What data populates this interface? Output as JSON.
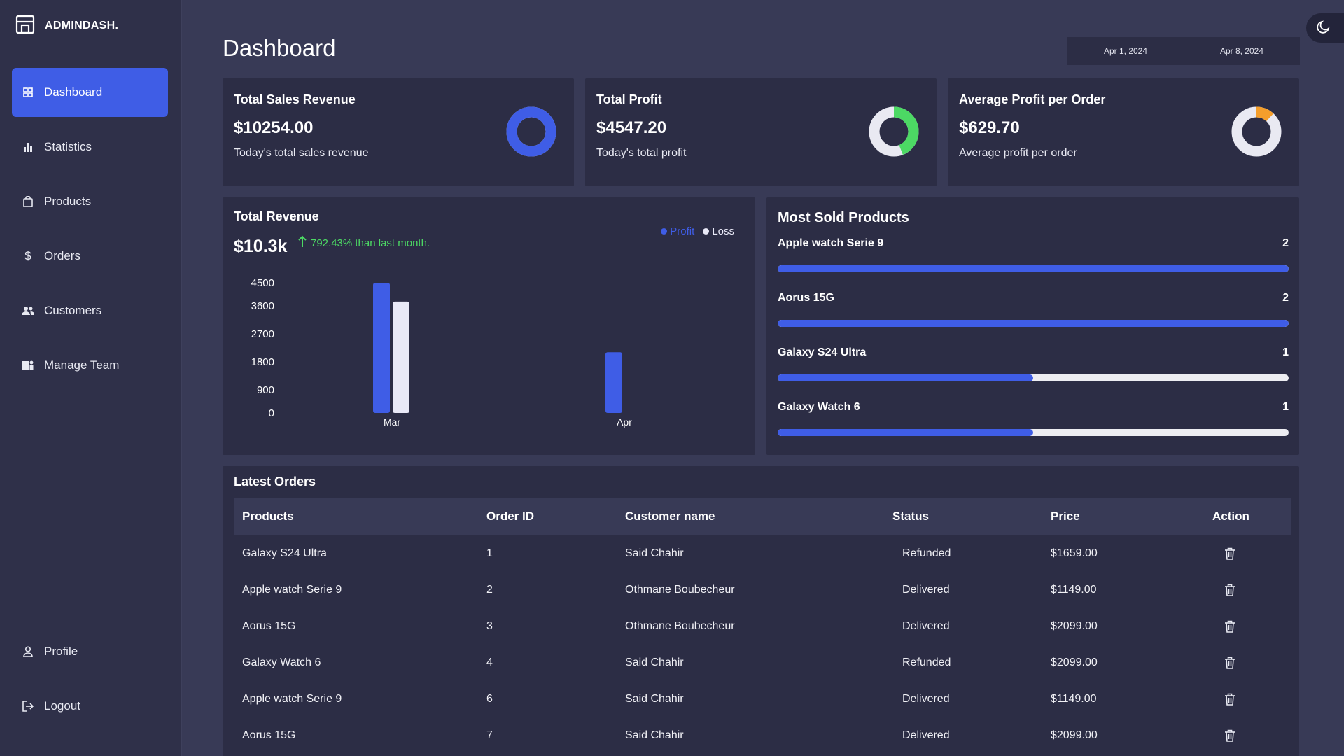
{
  "brand": {
    "title": "ADMINDASH.",
    "icon": "store-icon"
  },
  "sidebar": {
    "items": [
      {
        "label": "Dashboard",
        "icon": "grid-icon",
        "active": true
      },
      {
        "label": "Statistics",
        "icon": "bar-chart-icon"
      },
      {
        "label": "Products",
        "icon": "bag-icon"
      },
      {
        "label": "Orders",
        "icon": "dollar-icon"
      },
      {
        "label": "Customers",
        "icon": "users-icon"
      },
      {
        "label": "Manage Team",
        "icon": "team-icon"
      }
    ],
    "bottom": [
      {
        "label": "Profile",
        "icon": "user-icon"
      },
      {
        "label": "Logout",
        "icon": "logout-icon"
      }
    ]
  },
  "header": {
    "title": "Dashboard",
    "date_from": "Apr 1, 2024",
    "date_to": "Apr 8, 2024",
    "theme_icon": "moon-icon"
  },
  "stats": [
    {
      "title": "Total Sales Revenue",
      "value": "$10254.00",
      "sub": "Today's total sales revenue",
      "fill": 1.0,
      "color": "#3f5de6"
    },
    {
      "title": "Total Profit",
      "value": "$4547.20",
      "sub": "Today's total profit",
      "fill": 0.44,
      "color": "#4cd964"
    },
    {
      "title": "Average Profit per Order",
      "value": "$629.70",
      "sub": "Average profit per order",
      "fill": 0.12,
      "color": "#f59e2b"
    }
  ],
  "revenue": {
    "title": "Total Revenue",
    "value": "$10.3k",
    "change": "792.43% than last month.",
    "legend_profit": "Profit",
    "legend_loss": "Loss"
  },
  "chart_data": {
    "type": "bar",
    "categories": [
      "Mar",
      "Apr"
    ],
    "series": [
      {
        "name": "Profit",
        "values": [
          4500,
          2100
        ],
        "color": "#3f5de6"
      },
      {
        "name": "Loss",
        "values": [
          3850,
          0
        ],
        "color": "#e9e9f7"
      }
    ],
    "yticks": [
      "4500",
      "3600",
      "2700",
      "1800",
      "900",
      "0"
    ],
    "ylim": [
      0,
      4500
    ]
  },
  "most_sold": {
    "title": "Most Sold Products",
    "items": [
      {
        "name": "Apple watch Serie 9",
        "count": "2",
        "fill": 1.0
      },
      {
        "name": "Aorus 15G",
        "count": "2",
        "fill": 1.0
      },
      {
        "name": "Galaxy S24 Ultra",
        "count": "1",
        "fill": 0.5
      },
      {
        "name": "Galaxy Watch 6",
        "count": "1",
        "fill": 0.5
      }
    ]
  },
  "orders": {
    "title": "Latest Orders",
    "columns": [
      "Products",
      "Order ID",
      "Customer name",
      "Status",
      "Price",
      "Action"
    ],
    "rows": [
      {
        "product": "Galaxy S24 Ultra",
        "id": "1",
        "customer": "Said Chahir",
        "status": "Refunded",
        "price": "$1659.00"
      },
      {
        "product": "Apple watch Serie 9",
        "id": "2",
        "customer": "Othmane Boubecheur",
        "status": "Delivered",
        "price": "$1149.00"
      },
      {
        "product": "Aorus 15G",
        "id": "3",
        "customer": "Othmane Boubecheur",
        "status": "Delivered",
        "price": "$2099.00"
      },
      {
        "product": "Galaxy Watch 6",
        "id": "4",
        "customer": "Said Chahir",
        "status": "Refunded",
        "price": "$2099.00"
      },
      {
        "product": "Apple watch Serie 9",
        "id": "6",
        "customer": "Said Chahir",
        "status": "Delivered",
        "price": "$1149.00"
      },
      {
        "product": "Aorus 15G",
        "id": "7",
        "customer": "Said Chahir",
        "status": "Delivered",
        "price": "$2099.00"
      }
    ],
    "action_icon": "trash-icon"
  },
  "colors": {
    "accent": "#3f5de6",
    "card": "#2c2d45",
    "background": "#383a56",
    "sidebar": "#2f3049",
    "positive": "#4cd964"
  }
}
